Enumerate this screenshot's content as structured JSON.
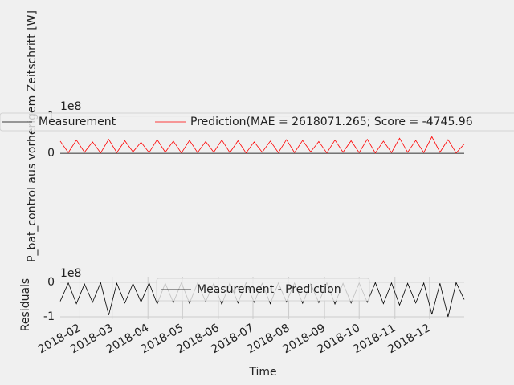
{
  "chart_data": [
    {
      "type": "line",
      "ylabel": "P_bat_control aus vorherigem Zeitschritt [W]",
      "offset_label": "1e8",
      "x": [
        "2018-01-15",
        "2018-01-22",
        "2018-01-29",
        "2018-02-05",
        "2018-02-12",
        "2018-02-19",
        "2018-02-26",
        "2018-03-05",
        "2018-03-12",
        "2018-03-19",
        "2018-03-26",
        "2018-04-02",
        "2018-04-09",
        "2018-04-16",
        "2018-04-23",
        "2018-04-30",
        "2018-05-07",
        "2018-05-14",
        "2018-05-21",
        "2018-05-28",
        "2018-06-04",
        "2018-06-11",
        "2018-06-18",
        "2018-06-25",
        "2018-07-02",
        "2018-07-09",
        "2018-07-16",
        "2018-07-23",
        "2018-07-30",
        "2018-08-06",
        "2018-08-13",
        "2018-08-20",
        "2018-08-27",
        "2018-09-03",
        "2018-09-10",
        "2018-09-17",
        "2018-09-24",
        "2018-10-01",
        "2018-10-08",
        "2018-10-15",
        "2018-10-22",
        "2018-10-29",
        "2018-11-05",
        "2018-11-12",
        "2018-11-19",
        "2018-11-26",
        "2018-12-03",
        "2018-12-10",
        "2018-12-17",
        "2018-12-24",
        "2018-12-31"
      ],
      "series": [
        {
          "name": "Measurement",
          "color": "#000000",
          "values": [
            0,
            0,
            0,
            0,
            0,
            0,
            0,
            0,
            0,
            0,
            0,
            0,
            0,
            0,
            0,
            0,
            0,
            0,
            0,
            0,
            0,
            0,
            0,
            0,
            0,
            0,
            0,
            0,
            0,
            0,
            0,
            0,
            0,
            0,
            0,
            0,
            0,
            0,
            0,
            0,
            0,
            0,
            0,
            0,
            0,
            0,
            0,
            0,
            0,
            0,
            0
          ]
        },
        {
          "name": "Prediction(MAE = 2618071.265; Score = -4745.96",
          "color": "#ff0000",
          "values": [
            0.33,
            0.02,
            0.36,
            0.03,
            0.31,
            0.01,
            0.38,
            0.02,
            0.34,
            0.04,
            0.3,
            0.02,
            0.37,
            0.03,
            0.33,
            0.01,
            0.35,
            0.02,
            0.32,
            0.03,
            0.36,
            0.02,
            0.34,
            0.01,
            0.31,
            0.03,
            0.33,
            0.02,
            0.37,
            0.02,
            0.35,
            0.04,
            0.32,
            0.01,
            0.36,
            0.03,
            0.34,
            0.02,
            0.38,
            0.01,
            0.33,
            0.02,
            0.41,
            0.03,
            0.35,
            0.02,
            0.45,
            0.03,
            0.37,
            0.01,
            0.25
          ]
        }
      ],
      "xlim": [
        "2018-01-15",
        "2018-12-31"
      ],
      "ylim": [
        -0.04,
        1.11
      ],
      "yticks": [
        0,
        1
      ],
      "grid": true,
      "legend": "upper center"
    },
    {
      "type": "line",
      "ylabel": "Residuals",
      "xlabel": "Time",
      "offset_label": "1e8",
      "x": [
        "2018-01-15",
        "2018-01-22",
        "2018-01-29",
        "2018-02-05",
        "2018-02-12",
        "2018-02-19",
        "2018-02-26",
        "2018-03-05",
        "2018-03-12",
        "2018-03-19",
        "2018-03-26",
        "2018-04-02",
        "2018-04-09",
        "2018-04-16",
        "2018-04-23",
        "2018-04-30",
        "2018-05-07",
        "2018-05-14",
        "2018-05-21",
        "2018-05-28",
        "2018-06-04",
        "2018-06-11",
        "2018-06-18",
        "2018-06-25",
        "2018-07-02",
        "2018-07-09",
        "2018-07-16",
        "2018-07-23",
        "2018-07-30",
        "2018-08-06",
        "2018-08-13",
        "2018-08-20",
        "2018-08-27",
        "2018-09-03",
        "2018-09-10",
        "2018-09-17",
        "2018-09-24",
        "2018-10-01",
        "2018-10-08",
        "2018-10-15",
        "2018-10-22",
        "2018-10-29",
        "2018-11-05",
        "2018-11-12",
        "2018-11-19",
        "2018-11-26",
        "2018-12-03",
        "2018-12-10",
        "2018-12-17",
        "2018-12-24",
        "2018-12-31"
      ],
      "series": [
        {
          "name": "Measurement - Prediction",
          "color": "#000000",
          "values": [
            -0.55,
            -0.02,
            -0.62,
            -0.05,
            -0.58,
            -0.01,
            -0.95,
            -0.03,
            -0.6,
            -0.04,
            -0.57,
            -0.02,
            -0.63,
            -0.03,
            -0.59,
            -0.01,
            -0.61,
            -0.02,
            -0.56,
            -0.03,
            -0.64,
            -0.02,
            -0.6,
            -0.01,
            -0.58,
            -0.03,
            -0.62,
            -0.02,
            -0.57,
            -0.02,
            -0.61,
            -0.04,
            -0.59,
            -0.01,
            -0.63,
            -0.03,
            -0.6,
            -0.02,
            -0.58,
            -0.01,
            -0.62,
            -0.02,
            -0.66,
            -0.03,
            -0.6,
            -0.02,
            -0.93,
            -0.03,
            -1.0,
            -0.01,
            -0.5
          ]
        }
      ],
      "xlim": [
        "2018-01-15",
        "2018-12-31"
      ],
      "ylim": [
        -1.07,
        0.16
      ],
      "yticks": [
        -1,
        0
      ],
      "xticks": [
        {
          "value": "2018-02-01",
          "label": "2018-02"
        },
        {
          "value": "2018-03-01",
          "label": "2018-03"
        },
        {
          "value": "2018-04-01",
          "label": "2018-04"
        },
        {
          "value": "2018-05-01",
          "label": "2018-05"
        },
        {
          "value": "2018-06-01",
          "label": "2018-06"
        },
        {
          "value": "2018-07-01",
          "label": "2018-07"
        },
        {
          "value": "2018-08-01",
          "label": "2018-08"
        },
        {
          "value": "2018-09-01",
          "label": "2018-09"
        },
        {
          "value": "2018-10-01",
          "label": "2018-10"
        },
        {
          "value": "2018-11-01",
          "label": "2018-11"
        },
        {
          "value": "2018-12-01",
          "label": "2018-12"
        }
      ],
      "grid": true,
      "legend": "upper center"
    }
  ]
}
